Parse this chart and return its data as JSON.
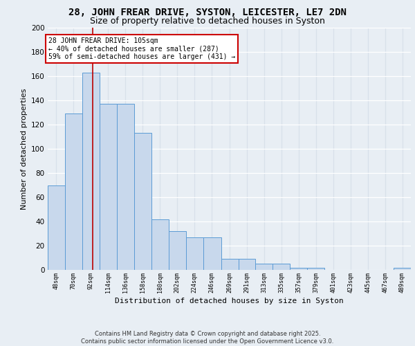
{
  "title1": "28, JOHN FREAR DRIVE, SYSTON, LEICESTER, LE7 2DN",
  "title2": "Size of property relative to detached houses in Syston",
  "xlabel": "Distribution of detached houses by size in Syston",
  "ylabel": "Number of detached properties",
  "bin_edges": [
    48,
    70,
    92,
    114,
    136,
    158,
    180,
    202,
    224,
    246,
    269,
    291,
    313,
    335,
    357,
    379,
    401,
    423,
    445,
    467,
    489
  ],
  "bar_heights": [
    70,
    129,
    163,
    137,
    137,
    113,
    42,
    32,
    27,
    27,
    9,
    9,
    5,
    5,
    2,
    2,
    0,
    0,
    0,
    0,
    2
  ],
  "bar_color": "#c8d8ec",
  "bar_edge_color": "#5b9bd5",
  "property_size": 105,
  "property_line_color": "#bb0000",
  "annotation_text": "28 JOHN FREAR DRIVE: 105sqm\n← 40% of detached houses are smaller (287)\n59% of semi-detached houses are larger (431) →",
  "annotation_box_color": "#ffffff",
  "annotation_box_edge_color": "#cc0000",
  "bg_color": "#e8eef4",
  "grid_color": "#d0d8e4",
  "ylim": [
    0,
    200
  ],
  "yticks": [
    0,
    20,
    40,
    60,
    80,
    100,
    120,
    140,
    160,
    180,
    200
  ],
  "footer_line1": "Contains HM Land Registry data © Crown copyright and database right 2025.",
  "footer_line2": "Contains public sector information licensed under the Open Government Licence v3.0.",
  "title1_fontsize": 10,
  "title2_fontsize": 9,
  "tick_fontsize": 6,
  "ylabel_fontsize": 8,
  "xlabel_fontsize": 8,
  "tick_labels": [
    "48sqm",
    "70sqm",
    "92sqm",
    "114sqm",
    "136sqm",
    "158sqm",
    "180sqm",
    "202sqm",
    "224sqm",
    "246sqm",
    "269sqm",
    "291sqm",
    "313sqm",
    "335sqm",
    "357sqm",
    "379sqm",
    "401sqm",
    "423sqm",
    "445sqm",
    "467sqm",
    "489sqm"
  ]
}
